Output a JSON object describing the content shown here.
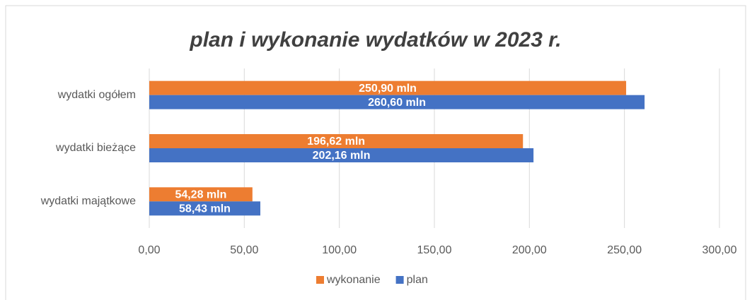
{
  "chart_data": {
    "type": "hbar",
    "title": "plan i wykonanie wydatków w 2023 r.",
    "categories": [
      "wydatki ogółem",
      "wydatki bieżące",
      "wydatki majątkowe"
    ],
    "series": [
      {
        "name": "wykonanie",
        "color": "#ED7D31",
        "values": [
          250.9,
          196.62,
          54.28
        ],
        "value_labels": [
          "250,90 mln",
          "196,62 mln",
          "54,28 mln"
        ]
      },
      {
        "name": "plan",
        "color": "#4472C4",
        "values": [
          260.6,
          202.16,
          58.43
        ],
        "value_labels": [
          "260,60 mln",
          "202,16 mln",
          "58,43 mln"
        ]
      }
    ],
    "xlim": [
      0,
      300
    ],
    "xticks": [
      {
        "value": 0,
        "label": "0,00"
      },
      {
        "value": 50,
        "label": "50,00"
      },
      {
        "value": 100,
        "label": "100,00"
      },
      {
        "value": 150,
        "label": "150,00"
      },
      {
        "value": 200,
        "label": "200,00"
      },
      {
        "value": 250,
        "label": "250,00"
      },
      {
        "value": 300,
        "label": "300,00"
      }
    ],
    "grid": true,
    "legend": "bottom"
  }
}
